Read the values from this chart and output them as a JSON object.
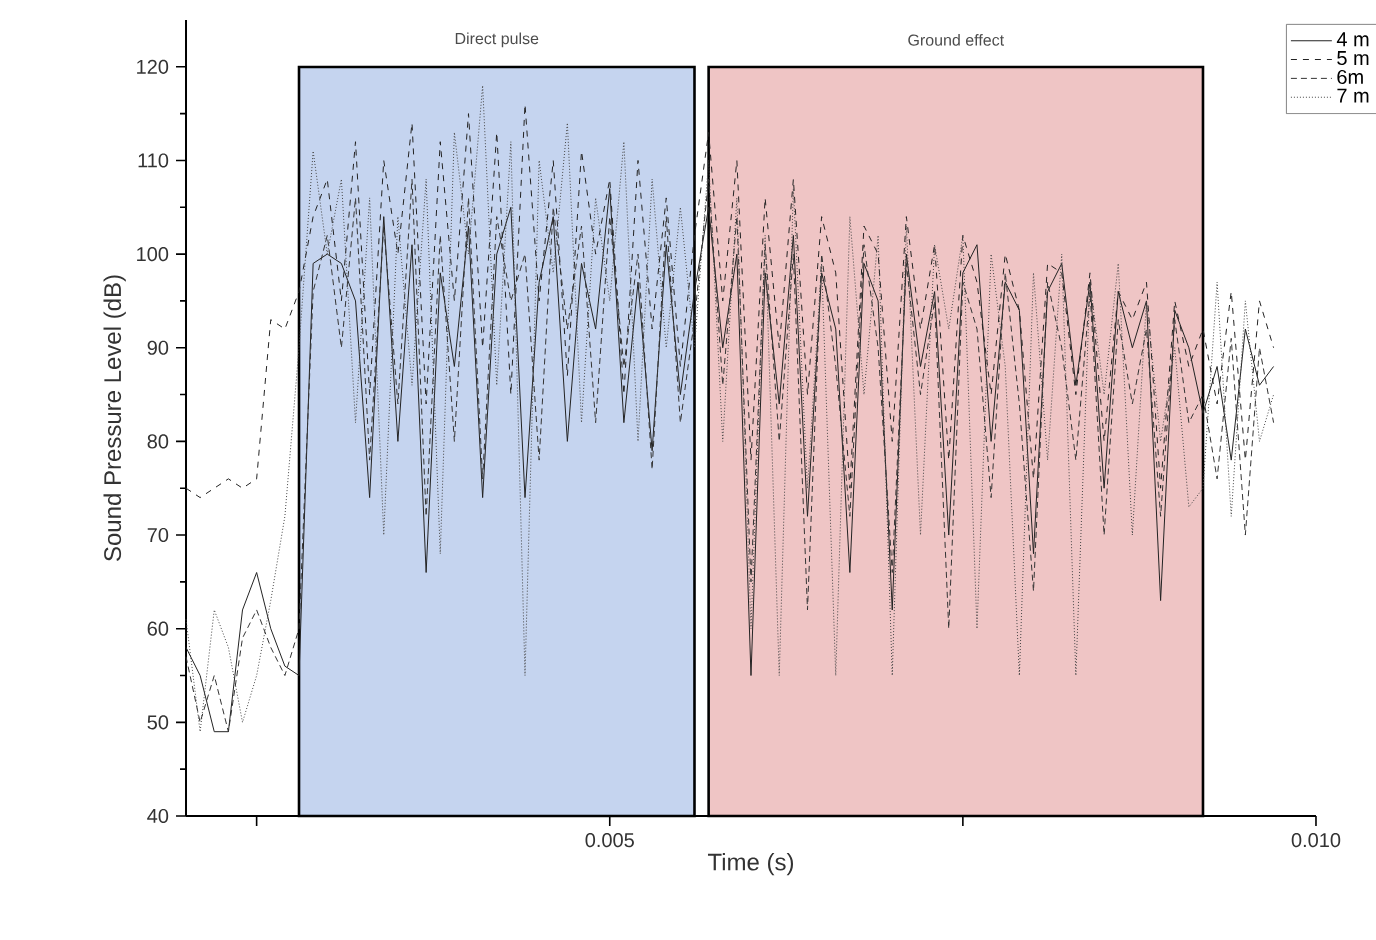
{
  "chart_data": {
    "type": "line",
    "xlabel": "Time (s)",
    "ylabel": "Sound Pressure Level (dB)",
    "xlim": [
      0.002,
      0.01
    ],
    "ylim": [
      40,
      125
    ],
    "xticks": [
      {
        "value": 0.0025,
        "label": null
      },
      0.005,
      {
        "value": 0.0075,
        "label": null
      },
      {
        "value": 0.01,
        "label": "0.010"
      }
    ],
    "yticks": [
      40,
      50,
      60,
      70,
      80,
      90,
      100,
      110,
      120
    ],
    "legend": "top right",
    "bands": [
      {
        "axis": "x",
        "from": 0.0028,
        "to": 0.0056,
        "label": "Direct pulse",
        "color": "#c5d4ef"
      },
      {
        "axis": "x",
        "from": 0.0057,
        "to": 0.0092,
        "label": "Ground effect",
        "color": "#efc5c5"
      }
    ],
    "x": [
      0.002,
      0.0021,
      0.0022,
      0.0023,
      0.0024,
      0.0025,
      0.0026,
      0.0027,
      0.0028,
      0.0029,
      0.003,
      0.0031,
      0.0032,
      0.0033,
      0.0034,
      0.0035,
      0.0036,
      0.0037,
      0.0038,
      0.0039,
      0.004,
      0.0041,
      0.0042,
      0.0043,
      0.0044,
      0.0045,
      0.0046,
      0.0047,
      0.0048,
      0.0049,
      0.005,
      0.0051,
      0.0052,
      0.0053,
      0.0054,
      0.0055,
      0.0056,
      0.0057,
      0.0058,
      0.0059,
      0.006,
      0.0061,
      0.0062,
      0.0063,
      0.0064,
      0.0065,
      0.0066,
      0.0067,
      0.0068,
      0.0069,
      0.007,
      0.0071,
      0.0072,
      0.0073,
      0.0074,
      0.0075,
      0.0076,
      0.0077,
      0.0078,
      0.0079,
      0.008,
      0.0081,
      0.0082,
      0.0083,
      0.0084,
      0.0085,
      0.0086,
      0.0087,
      0.0088,
      0.0089,
      0.009,
      0.0091,
      0.0092,
      0.0093,
      0.0094,
      0.0095,
      0.0096,
      0.0097
    ],
    "series": [
      {
        "name": "4 m",
        "color": "#222222",
        "line_style": "solid",
        "values": [
          58,
          55,
          49,
          49,
          62,
          66,
          60,
          56,
          55,
          99,
          100,
          99,
          95,
          74,
          104,
          80,
          101,
          66,
          98,
          88,
          103,
          74,
          100,
          105,
          74,
          97,
          104,
          80,
          99,
          92,
          107,
          82,
          97,
          79,
          101,
          85,
          96,
          105,
          90,
          100,
          55,
          98,
          84,
          102,
          72,
          98,
          92,
          66,
          99,
          95,
          62,
          100,
          88,
          96,
          70,
          98,
          101,
          80,
          97,
          94,
          68,
          96,
          99,
          86,
          97,
          75,
          96,
          90,
          95,
          63,
          94,
          90,
          83,
          88,
          78,
          92,
          86,
          88
        ]
      },
      {
        "name": "5 m",
        "color": "#222222",
        "line_style": "dashed",
        "values": [
          75,
          74,
          75,
          76,
          75,
          76,
          93,
          92,
          96,
          104,
          108,
          95,
          112,
          85,
          110,
          100,
          114,
          84,
          112,
          95,
          115,
          90,
          113,
          85,
          116,
          95,
          110,
          87,
          111,
          100,
          108,
          85,
          110,
          92,
          106,
          88,
          102,
          113,
          95,
          110,
          78,
          106,
          90,
          108,
          85,
          104,
          98,
          75,
          103,
          100,
          80,
          104,
          92,
          101,
          78,
          102,
          97,
          85,
          100,
          94,
          76,
          99,
          98,
          85,
          98,
          80,
          96,
          93,
          97,
          75,
          95,
          88,
          92,
          84,
          96,
          78,
          95,
          90
        ]
      },
      {
        "name": "6m",
        "color": "#333333",
        "line_style": "dashdot",
        "values": [
          57,
          50,
          55,
          49,
          59,
          62,
          58,
          55,
          60,
          96,
          102,
          90,
          106,
          78,
          103,
          84,
          108,
          72,
          102,
          80,
          106,
          76,
          104,
          95,
          100,
          78,
          105,
          92,
          103,
          82,
          104,
          88,
          100,
          77,
          104,
          82,
          93,
          108,
          86,
          104,
          65,
          101,
          80,
          100,
          62,
          100,
          88,
          72,
          101,
          90,
          66,
          99,
          85,
          95,
          60,
          97,
          92,
          74,
          98,
          84,
          64,
          97,
          90,
          78,
          96,
          70,
          93,
          84,
          92,
          72,
          93,
          82,
          85,
          76,
          91,
          70,
          90,
          82
        ]
      },
      {
        "name": "7 m",
        "color": "#444444",
        "line_style": "dotted",
        "values": [
          61,
          49,
          62,
          58,
          50,
          55,
          63,
          72,
          90,
          111,
          100,
          108,
          82,
          106,
          70,
          104,
          86,
          108,
          68,
          113,
          100,
          118,
          86,
          112,
          55,
          110,
          98,
          114,
          82,
          106,
          95,
          112,
          80,
          108,
          90,
          105,
          90,
          110,
          80,
          106,
          60,
          102,
          55,
          107,
          75,
          99,
          55,
          104,
          85,
          102,
          55,
          103,
          70,
          101,
          92,
          102,
          60,
          100,
          88,
          55,
          98,
          78,
          100,
          55,
          97,
          85,
          99,
          70,
          95,
          80,
          90,
          73,
          75,
          97,
          72,
          95,
          80,
          85
        ]
      }
    ]
  }
}
